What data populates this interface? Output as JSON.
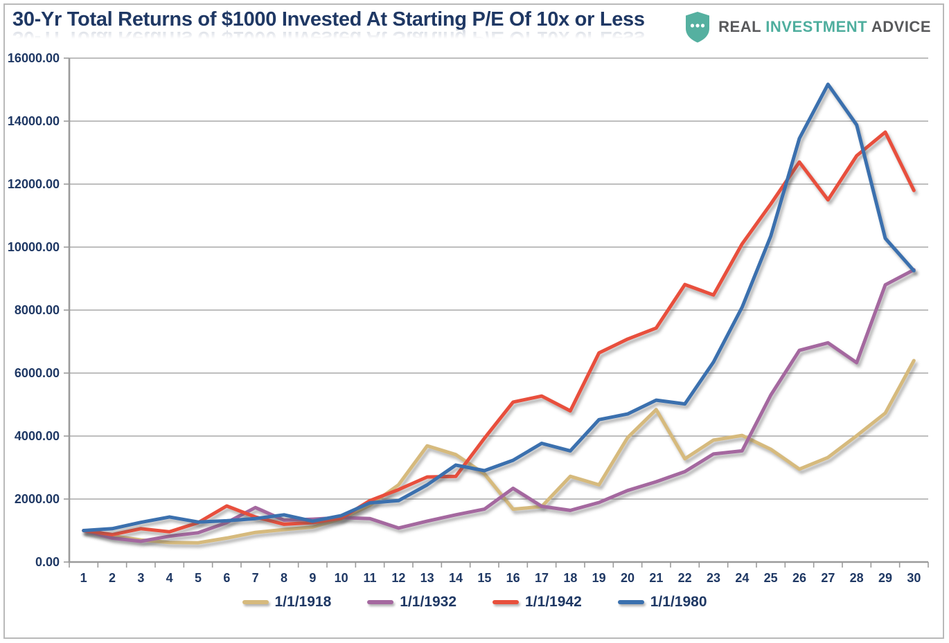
{
  "title": "30-Yr Total Returns of $1000 Invested At Starting P/E Of 10x or Less",
  "logo": {
    "real": "REAL",
    "investment": "INVESTMENT",
    "advice": "ADVICE",
    "shield_color": "#55b0a0"
  },
  "colors": {
    "title_text": "#1f3864",
    "axis_text": "#1f3864",
    "gridline": "#a8a8a8",
    "axis_line": "#9b9b9b",
    "border": "#b9b9b9"
  },
  "chart_data": {
    "type": "line",
    "x": [
      1,
      2,
      3,
      4,
      5,
      6,
      7,
      8,
      9,
      10,
      11,
      12,
      13,
      14,
      15,
      16,
      17,
      18,
      19,
      20,
      21,
      22,
      23,
      24,
      25,
      26,
      27,
      28,
      29,
      30
    ],
    "series": [
      {
        "name": "1/1/1918",
        "color": "#d6ba7d",
        "values": [
          1000,
          830,
          700,
          620,
          610,
          760,
          940,
          1030,
          1110,
          1370,
          1800,
          2450,
          3690,
          3410,
          2800,
          1680,
          1760,
          2720,
          2450,
          3950,
          4840,
          3280,
          3870,
          4020,
          3580,
          2950,
          3320,
          4010,
          4730,
          6395
        ]
      },
      {
        "name": "1/1/1932",
        "color": "#a4689f",
        "values": [
          1000,
          760,
          660,
          820,
          930,
          1250,
          1730,
          1330,
          1360,
          1410,
          1380,
          1080,
          1300,
          1500,
          1680,
          2340,
          1770,
          1640,
          1890,
          2270,
          2550,
          2870,
          3430,
          3530,
          5300,
          6720,
          6960,
          6330,
          8800,
          9280
        ]
      },
      {
        "name": "1/1/1942",
        "color": "#e8503c",
        "values": [
          1000,
          870,
          1060,
          960,
          1250,
          1780,
          1430,
          1200,
          1250,
          1390,
          1950,
          2300,
          2700,
          2720,
          3930,
          5080,
          5270,
          4800,
          6640,
          7080,
          7430,
          8810,
          8480,
          10100,
          11370,
          12700,
          11500,
          12900,
          13650,
          11800
        ]
      },
      {
        "name": "1/1/1980",
        "color": "#3a70ae",
        "values": [
          1000,
          1060,
          1260,
          1430,
          1270,
          1310,
          1380,
          1500,
          1300,
          1475,
          1880,
          1950,
          2450,
          3080,
          2900,
          3230,
          3770,
          3530,
          4520,
          4700,
          5140,
          5020,
          6350,
          8090,
          10350,
          13450,
          15170,
          13880,
          10280,
          9250
        ]
      }
    ],
    "title": "30-Yr Total Returns of $1000 Invested At Starting P/E Of 10x or Less",
    "xlabel": "",
    "ylabel": "",
    "ylim": [
      0,
      16000
    ],
    "ytick_step": 2000,
    "ytick_labels": [
      "0.00",
      "2000.00",
      "4000.00",
      "6000.00",
      "8000.00",
      "10000.00",
      "12000.00",
      "14000.00",
      "16000.00"
    ],
    "grid": "horizontal",
    "legend_position": "bottom"
  }
}
